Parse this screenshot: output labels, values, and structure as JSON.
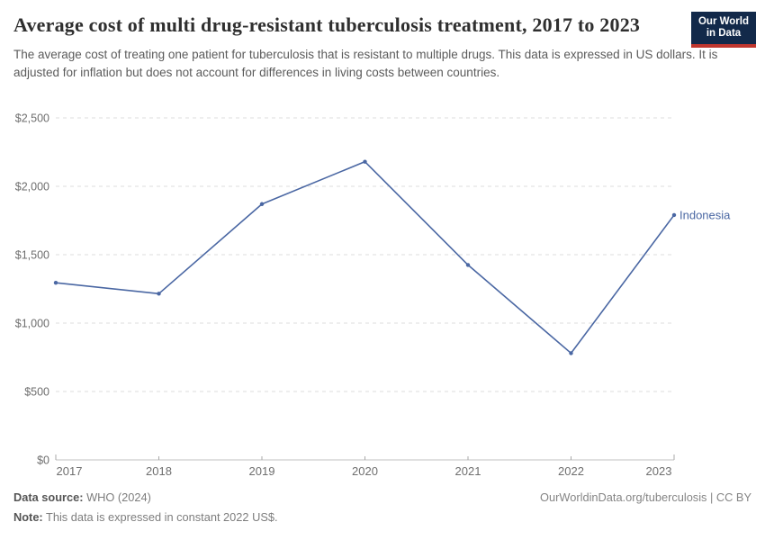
{
  "header": {
    "title": "Average cost of multi drug-resistant tuberculosis treatment, 2017 to 2023",
    "subtitle": "The average cost of treating one patient for tuberculosis that is resistant to multiple drugs. This data is expressed in US dollars. It is adjusted for inflation but does not account for differences in living costs between countries.",
    "logo": {
      "line1": "Our World",
      "line2": "in Data",
      "bg_color": "#12294a",
      "stripe_color": "#c0362e"
    }
  },
  "chart_data": {
    "type": "line",
    "x": [
      2017,
      2018,
      2019,
      2020,
      2021,
      2022,
      2023
    ],
    "x_tick_labels": [
      "2017",
      "2018",
      "2019",
      "2020",
      "2021",
      "2022",
      "2023"
    ],
    "series": [
      {
        "name": "Indonesia",
        "color": "#4a67a3",
        "values": [
          1295,
          1215,
          1870,
          2180,
          1425,
          780,
          1790
        ]
      }
    ],
    "ylim": [
      0,
      2500
    ],
    "yticks": [
      {
        "value": 0,
        "label": "$0"
      },
      {
        "value": 500,
        "label": "$500"
      },
      {
        "value": 1000,
        "label": "$1,000"
      },
      {
        "value": 1500,
        "label": "$1,500"
      },
      {
        "value": 2000,
        "label": "$2,000"
      },
      {
        "value": 2500,
        "label": "$2,500"
      }
    ],
    "grid": "horizontal-dashed",
    "legend_position": "line-end-label",
    "axis_color": "#c2c2c2",
    "tick_color": "#a8a8a8",
    "grid_color": "#dcdcdc",
    "tick_label_color": "#6e6e6e"
  },
  "footer": {
    "datasource_label": "Data source:",
    "datasource_value": " WHO (2024)",
    "note_label": "Note:",
    "note_value": " This data is expressed in constant 2022 US$.",
    "link": "OurWorldinData.org/tuberculosis | CC BY"
  }
}
